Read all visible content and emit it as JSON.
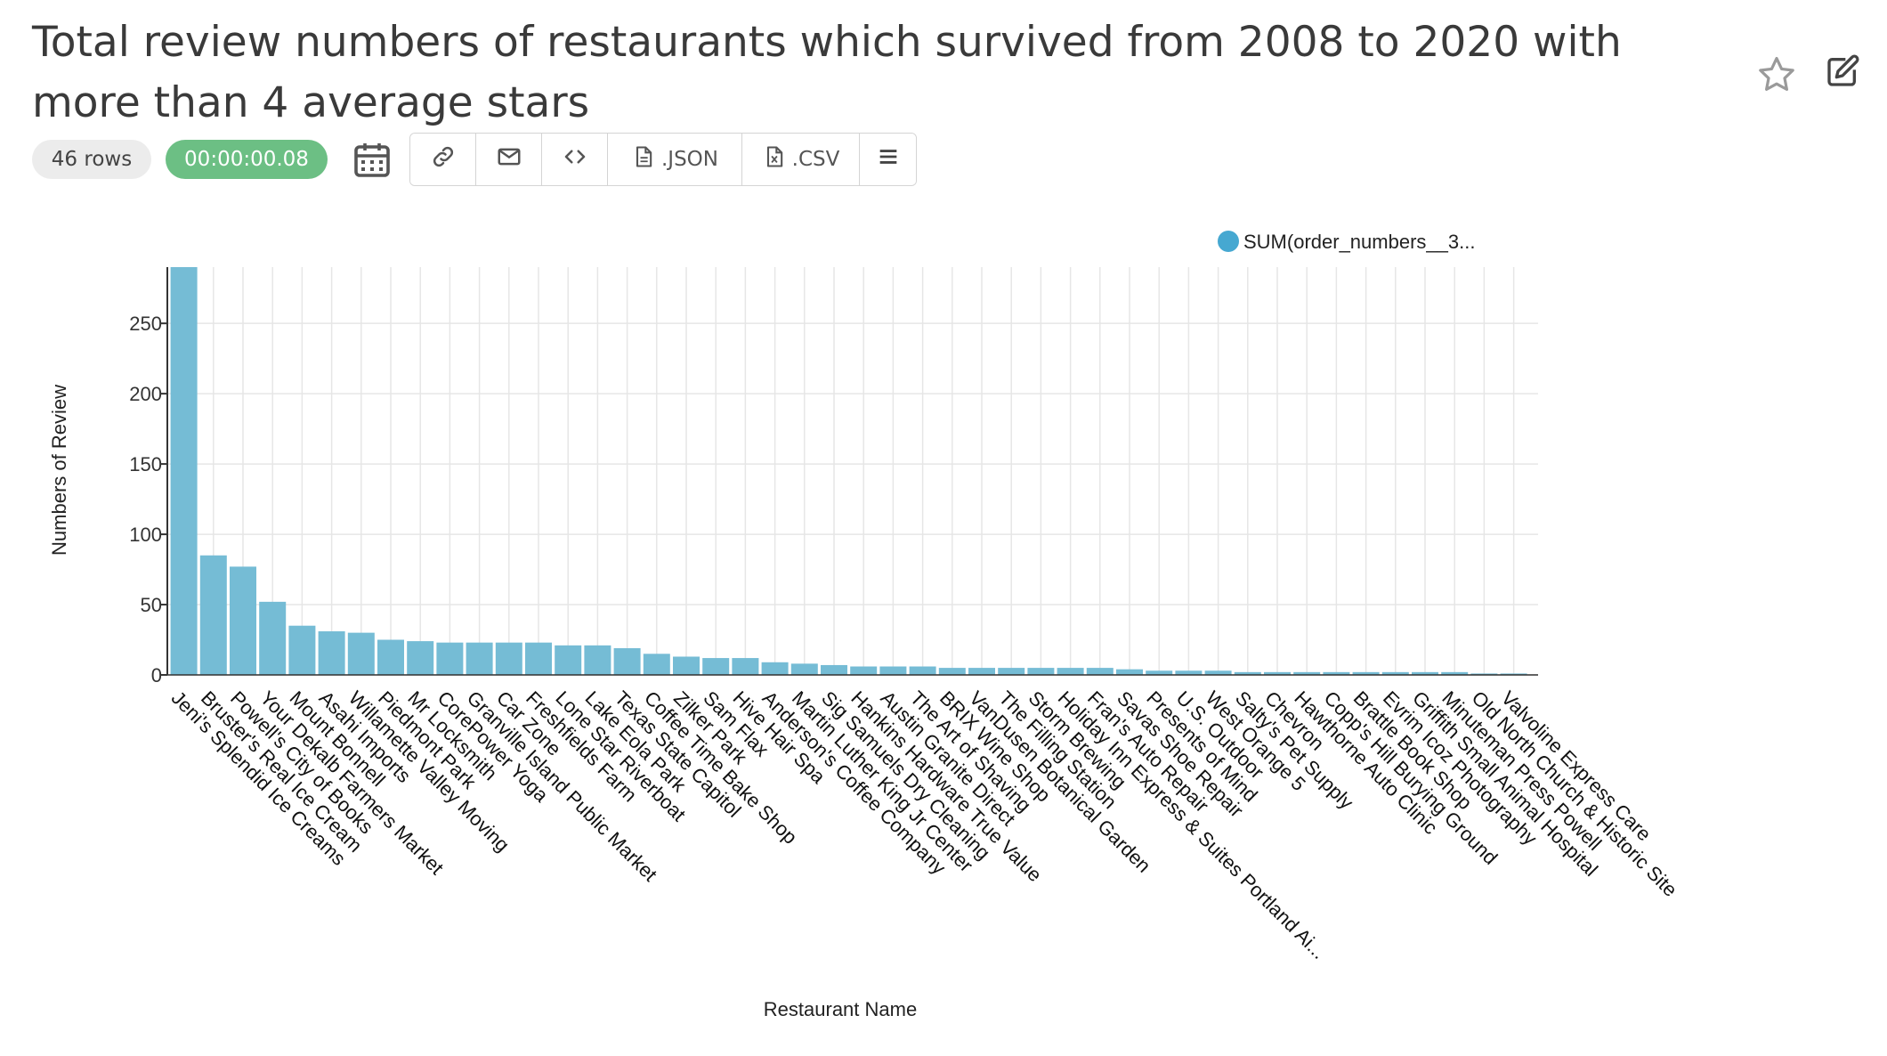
{
  "header": {
    "title": "Total review numbers of restaurants which survived from 2008 to 2020 with more than 4 average stars",
    "favorite_icon": "star-icon",
    "edit_icon": "edit-icon"
  },
  "toolbar": {
    "rows_label": "46 rows",
    "time_label": "00:00:00.08",
    "calendar_icon": "calendar-icon",
    "buttons": [
      {
        "name": "link",
        "icon": "link-icon",
        "label": ""
      },
      {
        "name": "email",
        "icon": "mail-icon",
        "label": ""
      },
      {
        "name": "embed",
        "icon": "code-icon",
        "label": ""
      },
      {
        "name": "json",
        "icon": "file-icon",
        "label": ".JSON"
      },
      {
        "name": "csv",
        "icon": "file-csv-icon",
        "label": ".CSV"
      },
      {
        "name": "menu",
        "icon": "menu-icon",
        "label": ""
      }
    ]
  },
  "colors": {
    "bar": "#75bcd5",
    "legend_dot": "#46a8d1",
    "grid": "#e6e6e6",
    "time_pill": "#6cbf84"
  },
  "chart_data": {
    "type": "bar",
    "xlabel": "Restaurant Name",
    "ylabel": "Numbers of Review",
    "ylim": [
      0,
      290
    ],
    "yticks": [
      0,
      50,
      100,
      150,
      200,
      250
    ],
    "grid": true,
    "legend_position": "top-right",
    "series": [
      {
        "name": "SUM(order_numbers__3...",
        "values": [
          290,
          85,
          77,
          52,
          35,
          31,
          30,
          25,
          24,
          23,
          23,
          23,
          23,
          21,
          21,
          19,
          15,
          13,
          12,
          12,
          9,
          8,
          7,
          6,
          6,
          6,
          5,
          5,
          5,
          5,
          5,
          5,
          4,
          3,
          3,
          3,
          2,
          2,
          2,
          2,
          2,
          2,
          2,
          2,
          1,
          1
        ]
      }
    ],
    "categories": [
      "Jeni's Splendid Ice Creams",
      "Bruster's Real Ice Cream",
      "Powell's City of Books",
      "Your Dekalb Farmers Market",
      "Mount Bonnell",
      "Asahi Imports",
      "Willamette Valley Moving",
      "Piedmont Park",
      "Mr Locksmith",
      "CorePower Yoga",
      "Granville Island Public Market",
      "Car Zone",
      "Freshfields Farm",
      "Lone Star Riverboat",
      "Lake Eola Park",
      "Texas State Capitol",
      "Coffee Time Bake Shop",
      "Zilker Park",
      "Sam Flax",
      "Hive Hair Spa",
      "Anderson's Coffee Company",
      "Martin Luther King Jr Center",
      "Sig Samuels Dry Cleaning",
      "Hankins Hardware True Value",
      "Austin Granite Direct",
      "The Art of Shaving",
      "BRIX Wine Shop",
      "VanDusen Botanical Garden",
      "The Filling Station",
      "Storm Brewing",
      "Holiday Inn Express & Suites Portland Ai...",
      "Fran's Auto Repair",
      "Savas Shoe Repair",
      "Presents of Mind",
      "U.S. Outdoor",
      "West Orange 5",
      "Salty's Pet Supply",
      "Chevron",
      "Hawthorne Auto Clinic",
      "Copp's Hill Burying Ground",
      "Brattle Book Shop",
      "Evrim Icoz Photography",
      "Griffith Small Animal Hospital",
      "Minuteman Press Powell",
      "Old North Church & Historic Site",
      "Valvoline Express Care"
    ]
  }
}
